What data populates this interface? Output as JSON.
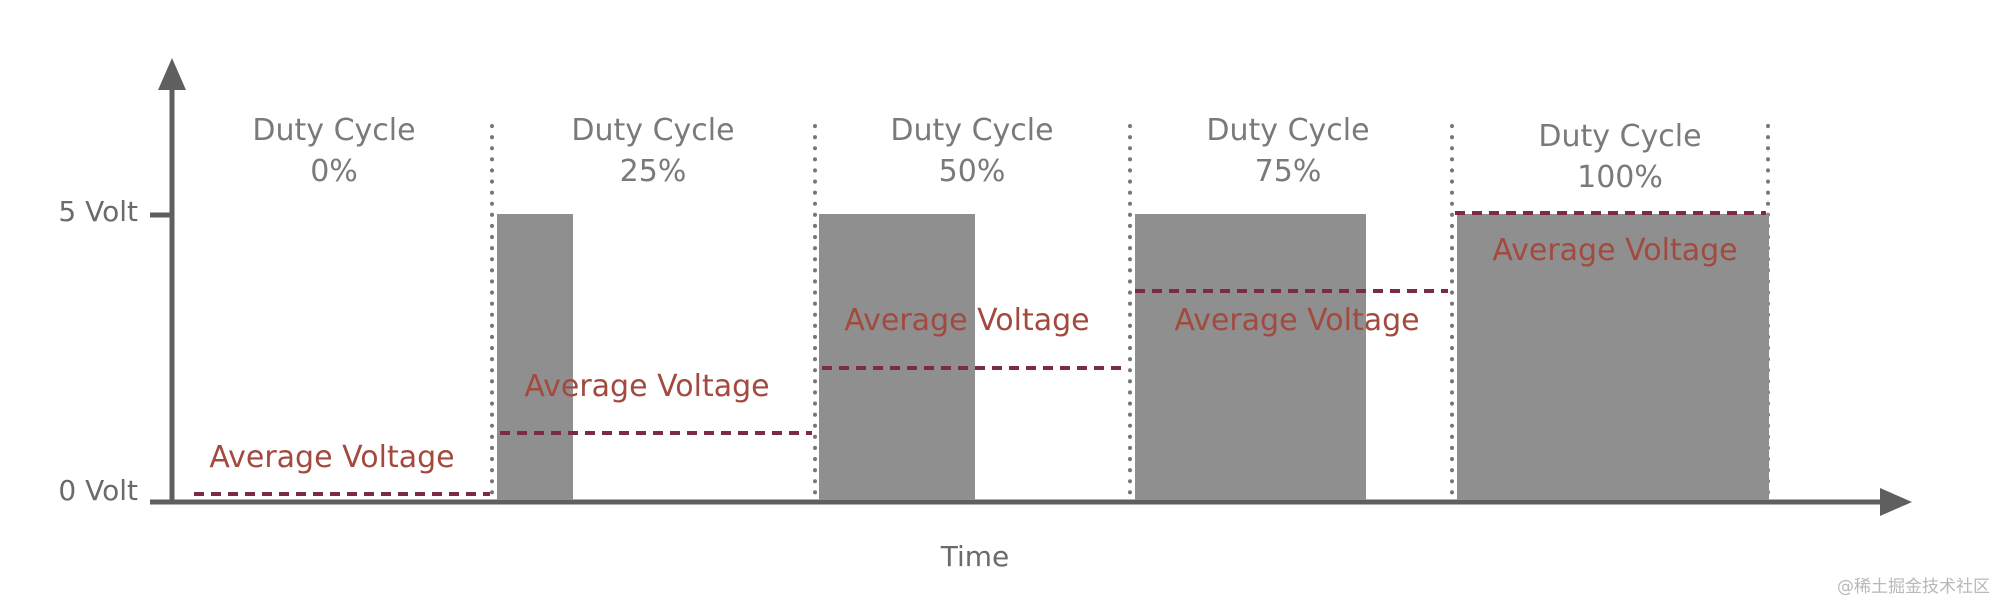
{
  "colors": {
    "axis": "#5f5f5f",
    "pulse": "#8f8f8f",
    "average": "#7a2d42",
    "average_label": "#a34a3f",
    "divider": "#777777"
  },
  "chart_data": {
    "type": "pwm-diagram",
    "ylabel_high": "5 Volt",
    "ylabel_low": "0 Volt",
    "xlabel": "Time",
    "v_max": 5,
    "segments": [
      {
        "duty_title": "Duty Cycle",
        "duty_value": "0%",
        "duty": 0,
        "avg_label": "Average Voltage"
      },
      {
        "duty_title": "Duty Cycle",
        "duty_value": "25%",
        "duty": 0.25,
        "avg_label": "Average Voltage"
      },
      {
        "duty_title": "Duty Cycle",
        "duty_value": "50%",
        "duty": 0.5,
        "avg_label": "Average Voltage"
      },
      {
        "duty_title": "Duty Cycle",
        "duty_value": "75%",
        "duty": 0.75,
        "avg_label": "Average Voltage"
      },
      {
        "duty_title": "Duty Cycle",
        "duty_value": "100%",
        "duty": 1,
        "avg_label": "Average Voltage"
      }
    ]
  },
  "watermark": "@稀土掘金技术社区"
}
